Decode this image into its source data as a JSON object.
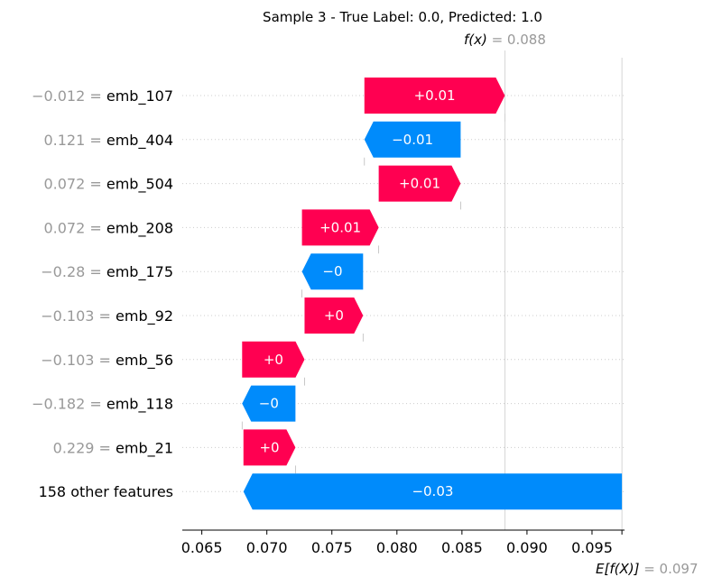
{
  "chart_data": {
    "type": "waterfall",
    "title": "Sample 3 - True Label: 0.0, Predicted: 1.0",
    "fx": {
      "label": "f(x)",
      "value": "0.088",
      "x": 0.0883
    },
    "efx": {
      "label": "E[f(X)]",
      "value": "0.097",
      "x": 0.0973
    },
    "xlim": [
      0.0635,
      0.0975
    ],
    "xticks": [
      "0.065",
      "0.070",
      "0.075",
      "0.080",
      "0.085",
      "0.090",
      "0.095"
    ],
    "xtick_values": [
      0.065,
      0.07,
      0.075,
      0.08,
      0.085,
      0.09,
      0.095
    ],
    "colors": {
      "positive": "#ff0051",
      "negative": "#008bfb",
      "value_text": "#999999",
      "line": "#cccccc"
    },
    "features": [
      {
        "value_text": "−0.012 =",
        "name": "emb_107",
        "start": 0.0775,
        "end": 0.0883,
        "label": "+0.01",
        "sign": "positive"
      },
      {
        "value_text": "0.121 =",
        "name": "emb_404",
        "start": 0.0849,
        "end": 0.0775,
        "label": "−0.01",
        "sign": "negative"
      },
      {
        "value_text": "0.072 =",
        "name": "emb_504",
        "start": 0.0786,
        "end": 0.0849,
        "label": "+0.01",
        "sign": "positive"
      },
      {
        "value_text": "0.072 =",
        "name": "emb_208",
        "start": 0.0727,
        "end": 0.0786,
        "label": "+0.01",
        "sign": "positive"
      },
      {
        "value_text": "−0.28 =",
        "name": "emb_175",
        "start": 0.0774,
        "end": 0.0727,
        "label": "−0",
        "sign": "negative"
      },
      {
        "value_text": "−0.103 =",
        "name": "emb_92",
        "start": 0.0729,
        "end": 0.0774,
        "label": "+0",
        "sign": "positive"
      },
      {
        "value_text": "−0.103 =",
        "name": "emb_56",
        "start": 0.0681,
        "end": 0.0729,
        "label": "+0",
        "sign": "positive"
      },
      {
        "value_text": "−0.182 =",
        "name": "emb_118",
        "start": 0.0722,
        "end": 0.0681,
        "label": "−0",
        "sign": "negative"
      },
      {
        "value_text": "0.229 =",
        "name": "emb_21",
        "start": 0.0682,
        "end": 0.0722,
        "label": "+0",
        "sign": "positive"
      },
      {
        "value_text": "",
        "name": "158 other features",
        "start": 0.0973,
        "end": 0.0682,
        "label": "−0.03",
        "sign": "negative"
      }
    ]
  }
}
